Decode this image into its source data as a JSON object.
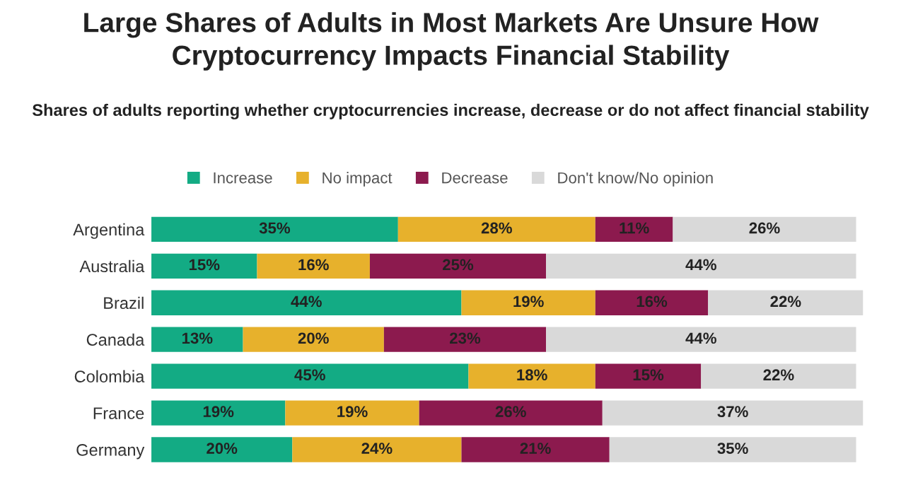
{
  "chart_data": {
    "type": "bar",
    "orientation": "horizontal",
    "stacked": true,
    "title": "Large Shares of Adults in Most Markets Are Unsure How\nCryptocurrency Impacts Financial Stability",
    "subtitle": "Shares of adults reporting whether cryptocurrencies increase, decrease or do not affect financial stability",
    "categories": [
      "Argentina",
      "Australia",
      "Brazil",
      "Canada",
      "Colombia",
      "France",
      "Germany"
    ],
    "series": [
      {
        "name": "Increase",
        "color": "#13ab84",
        "values": [
          35,
          15,
          44,
          13,
          45,
          19,
          20
        ],
        "value_labels": [
          "35%",
          "15%",
          "44%",
          "13%",
          "45%",
          "19%",
          "20%"
        ]
      },
      {
        "name": "No impact",
        "color": "#e7b12c",
        "values": [
          28,
          16,
          19,
          20,
          18,
          19,
          24
        ],
        "value_labels": [
          "28%",
          "16%",
          "19%",
          "20%",
          "18%",
          "19%",
          "24%"
        ]
      },
      {
        "name": "Decrease",
        "color": "#8c1a4e",
        "values": [
          11,
          25,
          16,
          23,
          15,
          26,
          21
        ],
        "value_labels": [
          "11%",
          "25%",
          "16%",
          "23%",
          "15%",
          "26%",
          "21%"
        ]
      },
      {
        "name": "Don't know/No opinion",
        "color": "#d9d9d9",
        "values": [
          26,
          44,
          22,
          44,
          22,
          37,
          35
        ],
        "value_labels": [
          "26%",
          "44%",
          "22%",
          "44%",
          "22%",
          "37%",
          "35%"
        ]
      }
    ],
    "legend": "top",
    "grid": false,
    "tick_labels": "y"
  }
}
